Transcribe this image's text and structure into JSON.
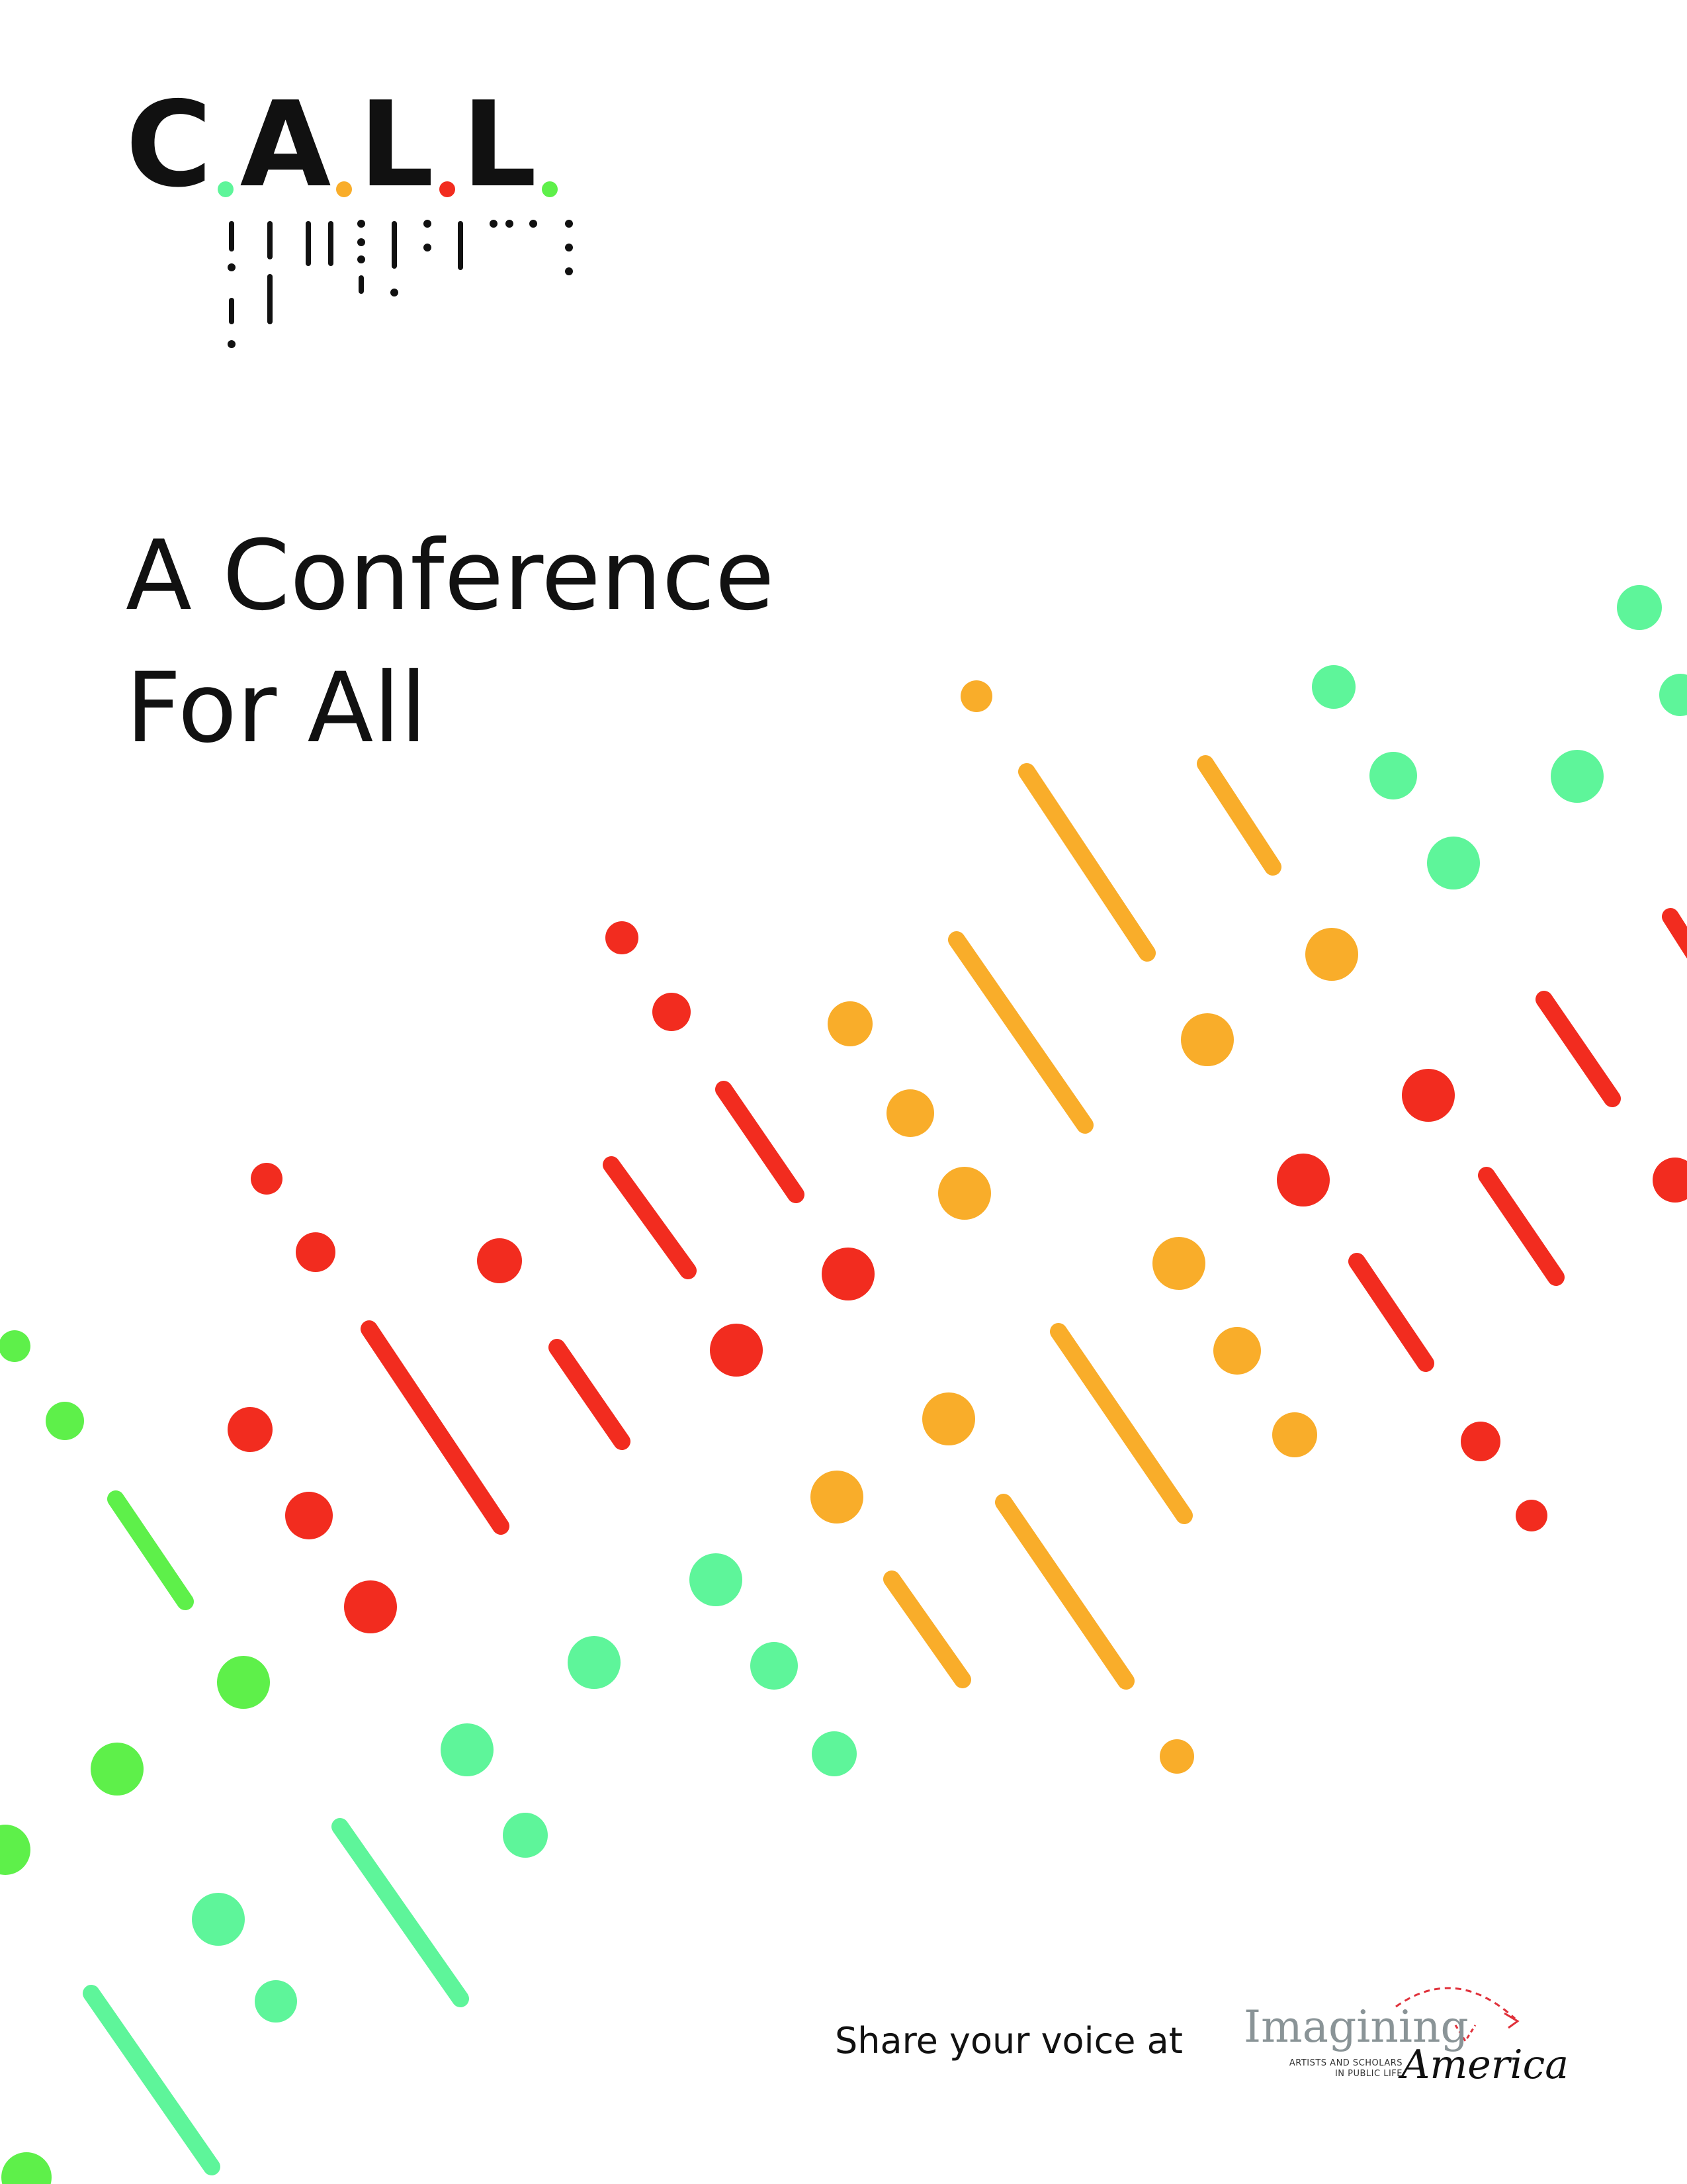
{
  "logo": {
    "letters": [
      "C",
      "A",
      "L",
      "L"
    ],
    "dot_colors": [
      "#5ef59a",
      "#f9ad2a",
      "#f22c1f",
      "#5ef04a"
    ]
  },
  "headline": {
    "line1": "A Conference",
    "line2": "For All"
  },
  "footer": {
    "share_text": "Share your voice at",
    "partner": {
      "word1": "Imagining",
      "word2": "America",
      "tagline_line1": "ARTISTS AND SCHOLARS",
      "tagline_line2": "IN PUBLIC LIFE"
    }
  },
  "colors": {
    "black": "#111111",
    "mint": "#5ef59a",
    "green": "#5ef04a",
    "orange": "#f9ad2a",
    "red": "#f22c1f"
  }
}
